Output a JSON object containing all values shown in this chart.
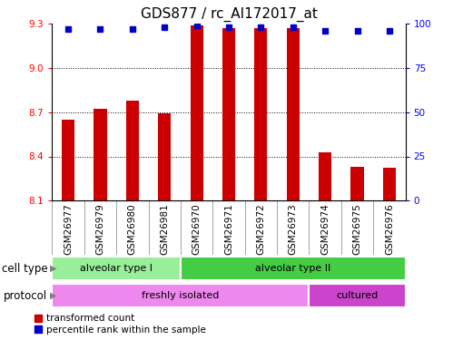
{
  "title": "GDS877 / rc_AI172017_at",
  "samples": [
    "GSM26977",
    "GSM26979",
    "GSM26980",
    "GSM26981",
    "GSM26970",
    "GSM26971",
    "GSM26972",
    "GSM26973",
    "GSM26974",
    "GSM26975",
    "GSM26976"
  ],
  "transformed_count": [
    8.65,
    8.72,
    8.78,
    8.69,
    9.29,
    9.27,
    9.27,
    9.27,
    8.43,
    8.33,
    8.32
  ],
  "percentile_rank": [
    97,
    97,
    97,
    98,
    99,
    98,
    98,
    98,
    96,
    96,
    96
  ],
  "ylim_left": [
    8.1,
    9.3
  ],
  "ylim_right": [
    0,
    100
  ],
  "yticks_left": [
    8.1,
    8.4,
    8.7,
    9.0,
    9.3
  ],
  "yticks_right": [
    0,
    25,
    50,
    75,
    100
  ],
  "bar_color": "#cc0000",
  "dot_color": "#0000cc",
  "bar_bottom": 8.1,
  "cell_type_groups": [
    {
      "label": "alveolar type I",
      "start": 0,
      "end": 4,
      "color": "#99ee99"
    },
    {
      "label": "alveolar type II",
      "start": 4,
      "end": 11,
      "color": "#44cc44"
    }
  ],
  "protocol_groups": [
    {
      "label": "freshly isolated",
      "start": 0,
      "end": 8,
      "color": "#ee88ee"
    },
    {
      "label": "cultured",
      "start": 8,
      "end": 11,
      "color": "#cc44cc"
    }
  ],
  "legend_items": [
    {
      "label": "transformed count",
      "color": "#cc0000"
    },
    {
      "label": "percentile rank within the sample",
      "color": "#0000cc"
    }
  ],
  "cell_type_label": "cell type",
  "protocol_label": "protocol",
  "title_fontsize": 11,
  "tick_fontsize": 7.5
}
